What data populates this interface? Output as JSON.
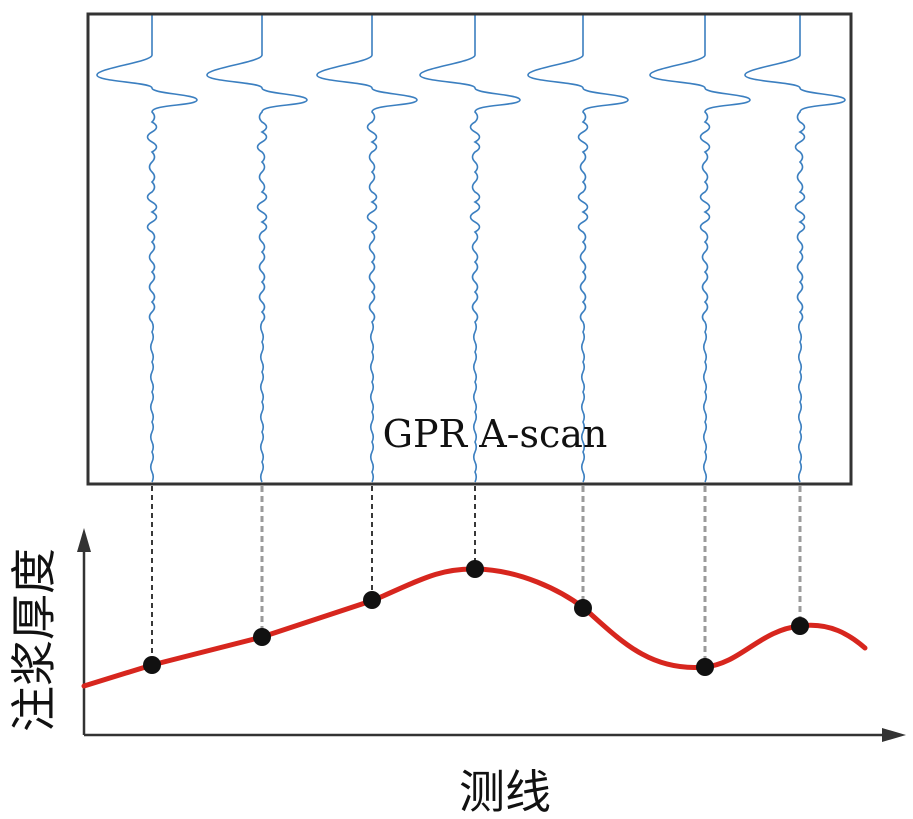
{
  "panel_label": "GPR A-scan",
  "y_axis_label": "注浆厚度",
  "x_axis_label": "测线",
  "colors": {
    "trace": "#3b7fc0",
    "curve": "#d7261e",
    "frame": "#333333",
    "marker": "#111111",
    "connector_dark": "#222222",
    "connector_light": "#9a9a9a"
  },
  "trace_count": 7
}
